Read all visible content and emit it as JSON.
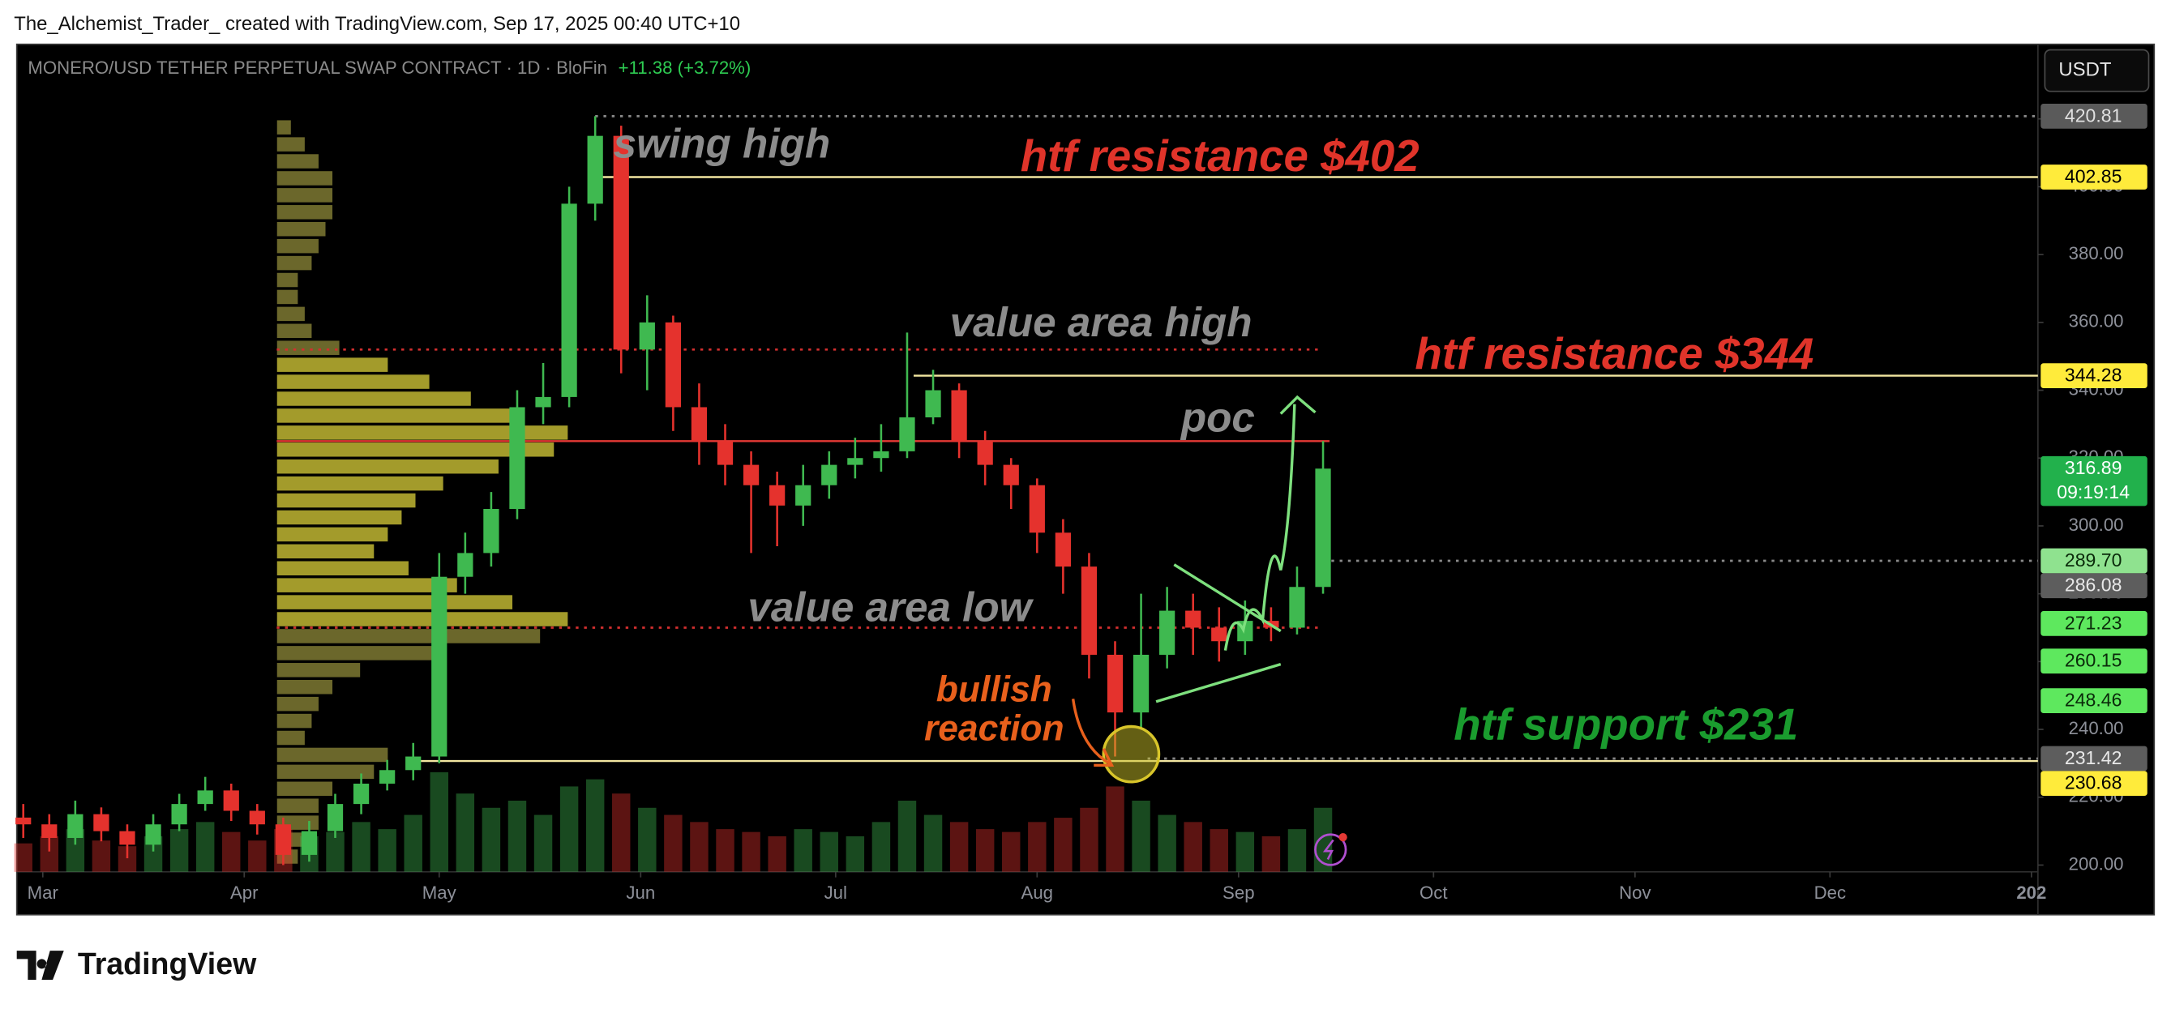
{
  "header": {
    "credit": "The_Alchemist_Trader_ created with TradingView.com, Sep 17, 2025 00:40 UTC+10",
    "logo": "TradingView"
  },
  "chart_data": {
    "type": "candlestick",
    "title": "MONERO/USD TETHER PERPETUAL SWAP CONTRACT · 1D · BloFin",
    "change": "+11.38 (+3.72%)",
    "currency": "USDT",
    "up_color": "#3fb950",
    "down_color": "#e5322d",
    "grid": false,
    "x": [
      -3,
      1,
      5,
      9,
      13,
      17,
      21,
      25,
      29,
      33,
      37,
      41,
      45,
      49,
      53,
      57,
      61,
      65,
      69,
      73,
      77,
      81,
      85,
      89,
      93,
      97,
      101,
      105,
      109,
      113,
      117,
      121,
      125,
      129,
      133,
      137,
      141,
      145,
      149,
      153,
      157,
      161,
      165,
      169,
      173,
      177,
      181,
      185,
      189,
      193,
      197
    ],
    "open": [
      214,
      212,
      208,
      215,
      210,
      206,
      212,
      218,
      222,
      216,
      212,
      203,
      210,
      218,
      224,
      228,
      232,
      285,
      292,
      305,
      335,
      338,
      395,
      415,
      352,
      360,
      335,
      325,
      318,
      312,
      306,
      312,
      318,
      320,
      322,
      332,
      340,
      325,
      318,
      312,
      298,
      288,
      262,
      245,
      262,
      275,
      270,
      266,
      272,
      270,
      282
    ],
    "high": [
      218,
      215,
      219,
      217,
      212,
      215,
      221,
      226,
      224,
      218,
      214,
      213,
      221,
      227,
      231,
      236,
      292,
      298,
      310,
      340,
      348,
      400,
      420.81,
      418,
      368,
      362,
      342,
      330,
      322,
      316,
      318,
      322,
      326,
      330,
      357,
      346,
      342,
      328,
      320,
      314,
      302,
      292,
      266,
      280,
      282,
      280,
      276,
      278,
      276,
      288,
      325
    ],
    "low": [
      208,
      204,
      206,
      207,
      202,
      204,
      210,
      216,
      213,
      209,
      200,
      201,
      208,
      215,
      222,
      225,
      230,
      280,
      288,
      302,
      330,
      335,
      390,
      345,
      340,
      328,
      318,
      312,
      292,
      294,
      300,
      308,
      314,
      316,
      320,
      330,
      320,
      312,
      305,
      292,
      280,
      255,
      232,
      240,
      258,
      262,
      260,
      262,
      266,
      268,
      280
    ],
    "close": [
      212,
      208,
      215,
      210,
      206,
      212,
      218,
      222,
      216,
      212,
      203,
      210,
      218,
      224,
      228,
      232,
      285,
      292,
      305,
      335,
      338,
      395,
      415,
      352,
      360,
      335,
      325,
      318,
      312,
      306,
      312,
      318,
      320,
      322,
      332,
      340,
      325,
      318,
      312,
      298,
      288,
      262,
      245,
      262,
      275,
      270,
      266,
      272,
      270,
      282,
      316.89
    ],
    "volume": [
      20,
      25,
      30,
      22,
      18,
      25,
      30,
      35,
      28,
      22,
      30,
      25,
      28,
      35,
      30,
      40,
      70,
      55,
      45,
      50,
      40,
      60,
      65,
      55,
      45,
      40,
      35,
      30,
      28,
      25,
      30,
      28,
      25,
      35,
      50,
      40,
      35,
      30,
      28,
      35,
      38,
      45,
      60,
      50,
      40,
      35,
      30,
      28,
      25,
      30,
      45
    ],
    "xlim": [
      -4,
      307
    ],
    "xticks": [
      {
        "value": 0,
        "label": "Mar"
      },
      {
        "value": 31,
        "label": "Apr"
      },
      {
        "value": 61,
        "label": "May"
      },
      {
        "value": 92,
        "label": "Jun"
      },
      {
        "value": 122,
        "label": "Jul"
      },
      {
        "value": 153,
        "label": "Aug"
      },
      {
        "value": 184,
        "label": "Sep"
      },
      {
        "value": 214,
        "label": "Oct"
      },
      {
        "value": 245,
        "label": "Nov"
      },
      {
        "value": 275,
        "label": "Dec"
      },
      {
        "value": 306,
        "label": "202"
      }
    ],
    "ylim": [
      198,
      442
    ],
    "yticks": [
      {
        "value": 200,
        "label": "200.00"
      },
      {
        "value": 220,
        "label": "220.00"
      },
      {
        "value": 240,
        "label": "240.00"
      },
      {
        "value": 260,
        "label": "260.00"
      },
      {
        "value": 280,
        "label": "280.00"
      },
      {
        "value": 300,
        "label": "300.00"
      },
      {
        "value": 320,
        "label": "320.00"
      },
      {
        "value": 340,
        "label": "340.00"
      },
      {
        "value": 360,
        "label": "360.00"
      },
      {
        "value": 380,
        "label": "380.00"
      },
      {
        "value": 400,
        "label": "400.00"
      },
      {
        "value": 420,
        "label": "420.00"
      }
    ],
    "levels": [
      {
        "value": 420.81,
        "label": "420.81",
        "color": "#5a5a5a",
        "text_color": "#e0e0e0",
        "line_color": "#8a8a8a",
        "dash": true,
        "from": 85
      },
      {
        "value": 402.85,
        "label": "402.85",
        "color": "#ffeb3b",
        "text_color": "#000000",
        "line_color": "#f2e6a0",
        "dash": false,
        "from": 86
      },
      {
        "value": 352,
        "line_color": "#d32f2f",
        "dash": true,
        "from": 36,
        "to": 197
      },
      {
        "value": 344.28,
        "label": "344.28",
        "color": "#ffeb3b",
        "text_color": "#000000",
        "line_color": "#f2e6a0",
        "dash": false,
        "from": 134
      },
      {
        "value": 325,
        "line_color": "#e53935",
        "dash": false,
        "from": 36,
        "to": 198
      },
      {
        "value": 316.89,
        "label": "316.89",
        "countdown": "09:19:14",
        "color": "#22b14c",
        "text_color": "#ffffff"
      },
      {
        "value": 289.7,
        "label": "289.70",
        "color": "#8fe28f",
        "text_color": "#0a2a0a",
        "line_color": "#8a8a8a",
        "dash": true,
        "from": 197
      },
      {
        "value": 286.08,
        "label": "286.08",
        "color": "#5d5d5d",
        "text_color": "#e8e8e8"
      },
      {
        "value": 271.23,
        "label": "271.23",
        "color": "#5ee85e",
        "text_color": "#0a2a0a"
      },
      {
        "value": 270,
        "line_color": "#d32f2f",
        "dash": true,
        "from": 36,
        "to": 197
      },
      {
        "value": 260.15,
        "label": "260.15",
        "color": "#5ee85e",
        "text_color": "#0a2a0a"
      },
      {
        "value": 248.46,
        "label": "248.46",
        "color": "#5ee85e",
        "text_color": "#0a2a0a"
      },
      {
        "value": 231.42,
        "label": "231.42",
        "color": "#5d5d5d",
        "text_color": "#e8e8e8",
        "line_color": "#8a8a8a",
        "dash": true,
        "from": 170
      },
      {
        "value": 230.68,
        "label": "230.68",
        "color": "#ffeb3b",
        "text_color": "#000000",
        "line_color": "#f2e6a0",
        "dash": false,
        "from": 57
      }
    ],
    "volume_profile": {
      "bins": [
        200,
        205,
        210,
        215,
        220,
        225,
        230,
        235,
        240,
        245,
        250,
        255,
        260,
        265,
        270,
        275,
        280,
        285,
        290,
        295,
        300,
        305,
        310,
        315,
        320,
        325,
        330,
        335,
        340,
        345,
        350,
        355,
        360,
        365,
        370,
        375,
        380,
        385,
        390,
        395,
        400,
        405,
        410,
        415,
        420
      ],
      "values": [
        15,
        20,
        30,
        30,
        40,
        70,
        80,
        20,
        25,
        30,
        40,
        60,
        120,
        190,
        210,
        170,
        130,
        95,
        70,
        80,
        90,
        100,
        120,
        160,
        200,
        210,
        170,
        140,
        110,
        80,
        45,
        25,
        20,
        15,
        15,
        25,
        30,
        35,
        40,
        40,
        40,
        30,
        20,
        10
      ],
      "color": "#8f8a3a",
      "value_area_color": "#d9cf3a"
    },
    "annotations": [
      {
        "text": "swing high",
        "color": "#8c8c8c"
      },
      {
        "text": "htf resistance $402",
        "color": "#e0342a"
      },
      {
        "text": "value area high",
        "color": "#8c8c8c"
      },
      {
        "text": "htf resistance $344",
        "color": "#e0342a"
      },
      {
        "text": "poc",
        "color": "#8c8c8c"
      },
      {
        "text": "value area low",
        "color": "#8c8c8c"
      },
      {
        "text": "bullish",
        "color": "#e8601c"
      },
      {
        "text": "reaction",
        "color": "#e8601c"
      },
      {
        "text": "htf support $231",
        "color": "#1a9c2e"
      }
    ]
  }
}
